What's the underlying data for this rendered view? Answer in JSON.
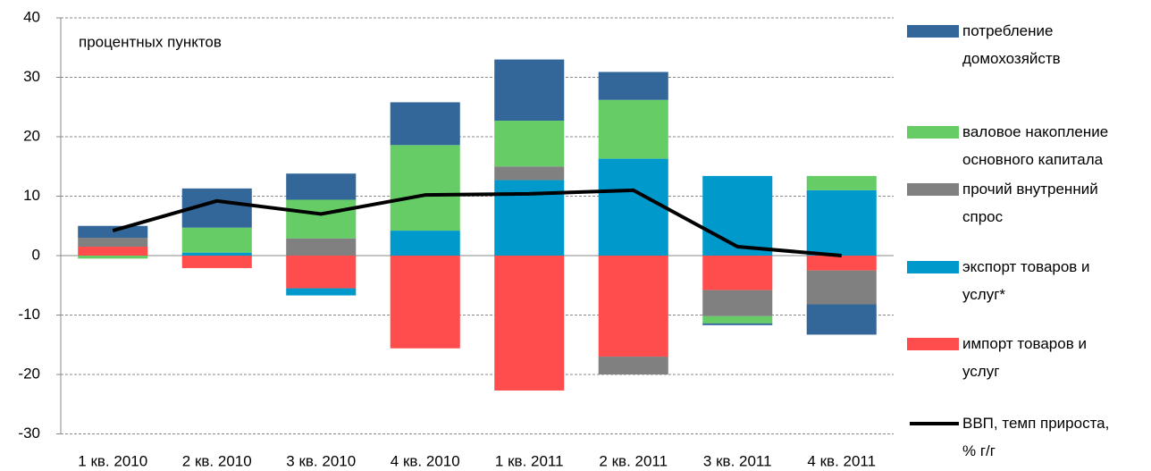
{
  "chart_data": {
    "type": "stacked_bar_line",
    "annotation": "процентных пунктов",
    "categories": [
      "1 кв. 2010",
      "2 кв. 2010",
      "3 кв. 2010",
      "4 кв. 2010",
      "1 кв. 2011",
      "2 кв. 2011",
      "3 кв. 2011",
      "4 кв. 2011"
    ],
    "series": [
      {
        "name": "потребление\nдомохозяйств",
        "color": "#336699",
        "values": [
          2.0,
          6.6,
          4.4,
          7.2,
          10.3,
          4.7,
          -0.3,
          -5.1
        ]
      },
      {
        "name": "валовое накопление\nосновного капитала",
        "color": "#66cc66",
        "values": [
          -0.5,
          4.2,
          6.5,
          14.4,
          7.7,
          9.9,
          -1.2,
          2.4
        ]
      },
      {
        "name": "прочий внутренний\nспрос",
        "color": "#808080",
        "values": [
          1.5,
          0,
          2.9,
          0,
          2.3,
          -3.0,
          -4.4,
          -5.7
        ]
      },
      {
        "name": "экспорт товаров и\nуслуг*",
        "color": "#0099cc",
        "values": [
          0,
          0.5,
          -1.2,
          4.2,
          12.7,
          16.3,
          13.4,
          11.0
        ]
      },
      {
        "name": "импорт товаров и\nуслуг",
        "color": "#ff4d4d",
        "values": [
          1.5,
          -2.1,
          -5.5,
          -15.6,
          -22.7,
          -17.0,
          -5.8,
          -2.5
        ]
      }
    ],
    "line_series": {
      "name": "ВВП, темп прироста,\n% г/г",
      "color": "#000000",
      "values": [
        4.2,
        9.2,
        7.0,
        10.2,
        10.4,
        11.0,
        1.5,
        0
      ]
    },
    "ylim": [
      -30,
      40
    ],
    "yticks": [
      -30,
      -20,
      -10,
      0,
      10,
      20,
      30,
      40
    ],
    "grid": true
  }
}
